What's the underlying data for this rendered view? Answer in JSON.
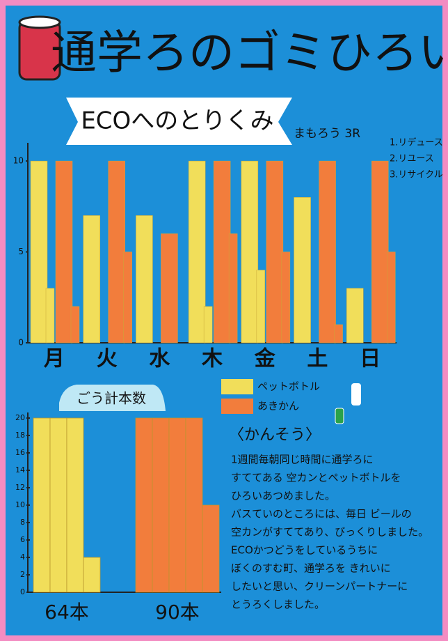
{
  "title": "通学ろのゴミひろい",
  "subtitle": "ECOへのとりくみ",
  "motto": "まもろう 3R",
  "three_r": [
    "1.リデュース",
    "2.リユース",
    "3.リサイクル"
  ],
  "impressions": {
    "heading": "〈かんそう〉",
    "lines": [
      "1週間毎朝同じ時間に通学ろに",
      "すててある 空カンとペットボトルを",
      "ひろいあつめました。",
      "バスていのところには、毎日 ビールの",
      "空カンがすててあり、びっくりしました。",
      "ECOかつどうをしているうちに",
      "ぼくのすむ町、通学ろを きれいに",
      "したいと思い、クリーンパートナーに",
      "とうろくしました。"
    ]
  },
  "chart_data": [
    {
      "type": "bar",
      "categories": [
        "月",
        "火",
        "水",
        "木",
        "金",
        "土",
        "日"
      ],
      "series": [
        {
          "name": "ペットボトル",
          "color": "#f1de5a",
          "values": [
            10,
            7,
            7,
            10,
            10,
            8,
            3
          ]
        },
        {
          "color": "#f1de5a",
          "values": [
            3,
            null,
            null,
            2,
            4,
            null,
            null
          ]
        },
        {
          "name": "あきかん",
          "color": "#f27d3c",
          "values": [
            10,
            10,
            6,
            10,
            10,
            10,
            10
          ]
        },
        {
          "color": "#f27d3c",
          "values": [
            2,
            5,
            null,
            6,
            5,
            1,
            5
          ]
        }
      ],
      "ylim": [
        0,
        11
      ],
      "yticks": [
        0,
        5,
        10
      ]
    },
    {
      "type": "columns",
      "title": "ごう計本数",
      "groups": [
        {
          "label": "64本",
          "color": "#f1de5a",
          "values": [
            20,
            20,
            20,
            4
          ]
        },
        {
          "label": "90本",
          "color": "#f27d3c",
          "values": [
            20,
            20,
            20,
            20,
            10
          ]
        }
      ],
      "ylim": [
        0,
        20
      ],
      "yticks": [
        0,
        2,
        4,
        6,
        8,
        10,
        12,
        14,
        16,
        18,
        20
      ]
    }
  ]
}
